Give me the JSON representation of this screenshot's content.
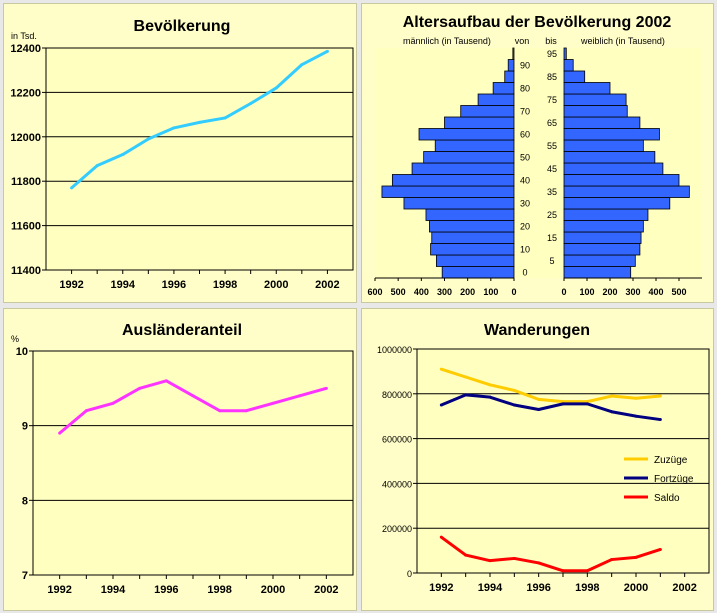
{
  "chart_data": [
    {
      "type": "line",
      "title": "Bevölkerung",
      "ylabel": "in Tsd.",
      "x": [
        1992,
        1993,
        1994,
        1995,
        1996,
        1997,
        1998,
        1999,
        2000,
        2001,
        2002
      ],
      "values": [
        11770,
        11870,
        11920,
        11990,
        12040,
        12065,
        12085,
        12150,
        12220,
        12325,
        12385
      ],
      "xticks": [
        "1992",
        "1994",
        "1996",
        "1998",
        "2000",
        "2002"
      ],
      "yticks": [
        "11400",
        "11600",
        "11800",
        "12000",
        "12200",
        "12400"
      ],
      "ylim": [
        11400,
        12400
      ],
      "color": "#33ccff"
    },
    {
      "type": "bar",
      "title": "Altersaufbau der Bevölkerung 2002",
      "left_label": "männlich (in Tausend)",
      "right_label": "weiblich (in Tausend)",
      "from_label": "von",
      "to_label": "bis",
      "categories": [
        "0-4",
        "5-9",
        "10-14",
        "15-19",
        "20-24",
        "25-29",
        "30-34",
        "35-39",
        "40-44",
        "45-49",
        "50-54",
        "55-59",
        "60-64",
        "65-69",
        "70-74",
        "75-79",
        "80-84",
        "85-89",
        "90-94",
        "95+"
      ],
      "from_ticks": [
        "0",
        "10",
        "20",
        "30",
        "40",
        "50",
        "60",
        "70",
        "80",
        "90"
      ],
      "to_ticks": [
        "5",
        "15",
        "25",
        "35",
        "45",
        "55",
        "65",
        "75",
        "85",
        "95"
      ],
      "series": [
        {
          "name": "männlich",
          "values": [
            310,
            335,
            360,
            355,
            365,
            380,
            475,
            570,
            525,
            440,
            390,
            340,
            410,
            300,
            230,
            155,
            90,
            40,
            25,
            5
          ]
        },
        {
          "name": "weiblich",
          "values": [
            290,
            310,
            330,
            335,
            345,
            365,
            460,
            545,
            500,
            430,
            395,
            345,
            415,
            330,
            275,
            270,
            200,
            90,
            40,
            10
          ]
        }
      ],
      "xticks": [
        "600",
        "500",
        "400",
        "300",
        "200",
        "100",
        "0",
        "0",
        "100",
        "200",
        "300",
        "400",
        "500"
      ],
      "xlim": [
        0,
        600
      ],
      "color": "#3366ff"
    },
    {
      "type": "line",
      "title": "Ausländeranteil",
      "ylabel": "%",
      "x": [
        1992,
        1993,
        1994,
        1995,
        1996,
        1997,
        1998,
        1999,
        2000,
        2001,
        2002
      ],
      "values": [
        8.9,
        9.2,
        9.3,
        9.5,
        9.6,
        9.4,
        9.2,
        9.2,
        9.3,
        9.4,
        9.5
      ],
      "xticks": [
        "1992",
        "1994",
        "1996",
        "1998",
        "2000",
        "2002"
      ],
      "yticks": [
        "7",
        "8",
        "9",
        "10"
      ],
      "ylim": [
        7,
        10
      ],
      "color": "#ff33ff"
    },
    {
      "type": "line",
      "title": "Wanderungen",
      "x": [
        1992,
        1993,
        1994,
        1995,
        1996,
        1997,
        1998,
        1999,
        2000,
        2001
      ],
      "series": [
        {
          "name": "Zuzüge",
          "values": [
            910000,
            875000,
            840000,
            815000,
            775000,
            765000,
            765000,
            790000,
            780000,
            790000
          ],
          "color": "#ffcc00"
        },
        {
          "name": "Fortzüge",
          "values": [
            750000,
            795000,
            785000,
            750000,
            730000,
            755000,
            755000,
            720000,
            700000,
            685000
          ],
          "color": "#000080"
        },
        {
          "name": "Saldo",
          "values": [
            160000,
            80000,
            55000,
            65000,
            45000,
            10000,
            10000,
            60000,
            70000,
            105000
          ],
          "color": "#ff0000"
        }
      ],
      "xticks": [
        "1992",
        "1994",
        "1996",
        "1998",
        "2000",
        "2002"
      ],
      "yticks": [
        "0",
        "200000",
        "400000",
        "600000",
        "800000",
        "1000000"
      ],
      "ylim": [
        0,
        1000000
      ]
    }
  ]
}
